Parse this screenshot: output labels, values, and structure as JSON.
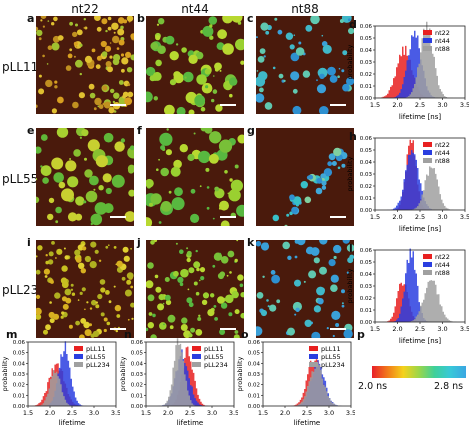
{
  "columns": [
    "nt22",
    "nt44",
    "nt88"
  ],
  "rows": [
    "pLL11",
    "pLL55",
    "pLL234"
  ],
  "panel_letters": {
    "micro": [
      [
        "a",
        "b",
        "c"
      ],
      [
        "e",
        "f",
        "g"
      ],
      [
        "i",
        "j",
        "k"
      ]
    ],
    "right_hist": [
      "d",
      "h",
      "l"
    ],
    "bottom_hist": [
      "m",
      "n",
      "o"
    ],
    "colorbar": "p"
  },
  "axes": {
    "xlabel": "lifetime [ns]",
    "ylabel": "probability",
    "xticks": [
      "1.5",
      "2.0",
      "2.5",
      "3.0",
      "3.5"
    ],
    "yticks": [
      "0.00",
      "0.01",
      "0.02",
      "0.03",
      "0.04",
      "0.05",
      "0.06"
    ]
  },
  "colors": {
    "red": "#e82020",
    "blue": "#2a3ee0",
    "gray": "#a0a0a0",
    "micro_bg": "#4a1a0c"
  },
  "colorbar": {
    "min_label": "2.0 ns",
    "max_label": "2.8 ns",
    "stops": [
      "#e8202a",
      "#f27a1a",
      "#f4d21c",
      "#9ad64a",
      "#3ed09a",
      "#38c8d8",
      "#3aa6e2"
    ]
  },
  "chart_data": [
    {
      "type": "area",
      "panel": "d",
      "xlabel": "lifetime [ns]",
      "ylabel": "probability",
      "xlim": [
        1.5,
        3.5
      ],
      "ylim": [
        0,
        0.06
      ],
      "series": [
        {
          "name": "nt22",
          "color": "#e82020",
          "mean": 2.15,
          "sd": 0.17,
          "peak": 0.04
        },
        {
          "name": "nt44",
          "color": "#2a3ee0",
          "mean": 2.38,
          "sd": 0.15,
          "peak": 0.052
        },
        {
          "name": "nt88",
          "color": "#a0a0a0",
          "mean": 2.65,
          "sd": 0.15,
          "peak": 0.058
        }
      ]
    },
    {
      "type": "area",
      "panel": "h",
      "xlabel": "lifetime [ns]",
      "ylabel": "probability",
      "xlim": [
        1.5,
        3.5
      ],
      "ylim": [
        0,
        0.06
      ],
      "series": [
        {
          "name": "nt22",
          "color": "#e82020",
          "mean": 2.3,
          "sd": 0.11,
          "peak": 0.058
        },
        {
          "name": "nt44",
          "color": "#2a3ee0",
          "mean": 2.33,
          "sd": 0.15,
          "peak": 0.048
        },
        {
          "name": "nt88",
          "color": "#a0a0a0",
          "mean": 2.75,
          "sd": 0.14,
          "peak": 0.036
        }
      ]
    },
    {
      "type": "area",
      "panel": "l",
      "xlabel": "lifetime [ns]",
      "ylabel": "probability",
      "xlim": [
        1.5,
        3.5
      ],
      "ylim": [
        0,
        0.06
      ],
      "series": [
        {
          "name": "nt22",
          "color": "#e82020",
          "mean": 2.12,
          "sd": 0.12,
          "peak": 0.034
        },
        {
          "name": "nt44",
          "color": "#2a3ee0",
          "mean": 2.3,
          "sd": 0.12,
          "peak": 0.06
        },
        {
          "name": "nt88",
          "color": "#a0a0a0",
          "mean": 2.75,
          "sd": 0.16,
          "peak": 0.036
        }
      ]
    },
    {
      "type": "area",
      "panel": "m",
      "xlabel": "lifetime",
      "ylabel": "probability",
      "xlim": [
        1.5,
        3.5
      ],
      "ylim": [
        0,
        0.06
      ],
      "series": [
        {
          "name": "pLL11",
          "color": "#e82020",
          "mean": 2.15,
          "sd": 0.17,
          "peak": 0.04
        },
        {
          "name": "pLL55",
          "color": "#2a3ee0",
          "mean": 2.33,
          "sd": 0.13,
          "peak": 0.055
        },
        {
          "name": "pLL234",
          "color": "#a0a0a0",
          "mean": 2.12,
          "sd": 0.12,
          "peak": 0.034
        }
      ]
    },
    {
      "type": "area",
      "panel": "n",
      "xlabel": "lifetime",
      "ylabel": "probability",
      "xlim": [
        1.5,
        3.5
      ],
      "ylim": [
        0,
        0.06
      ],
      "series": [
        {
          "name": "pLL11",
          "color": "#e82020",
          "mean": 2.45,
          "sd": 0.13,
          "peak": 0.052
        },
        {
          "name": "pLL55",
          "color": "#2a3ee0",
          "mean": 2.33,
          "sd": 0.15,
          "peak": 0.048
        },
        {
          "name": "pLL234",
          "color": "#a0a0a0",
          "mean": 2.25,
          "sd": 0.12,
          "peak": 0.06
        }
      ]
    },
    {
      "type": "area",
      "panel": "o",
      "xlabel": "lifetime",
      "ylabel": "probability",
      "xlim": [
        1.5,
        3.5
      ],
      "ylim": [
        0,
        0.06
      ],
      "series": [
        {
          "name": "pLL11",
          "color": "#e82020",
          "mean": 2.68,
          "sd": 0.16,
          "peak": 0.046
        },
        {
          "name": "pLL55",
          "color": "#2a3ee0",
          "mean": 2.75,
          "sd": 0.15,
          "peak": 0.04
        },
        {
          "name": "pLL234",
          "color": "#a0a0a0",
          "mean": 2.72,
          "sd": 0.16,
          "peak": 0.038
        }
      ]
    }
  ]
}
